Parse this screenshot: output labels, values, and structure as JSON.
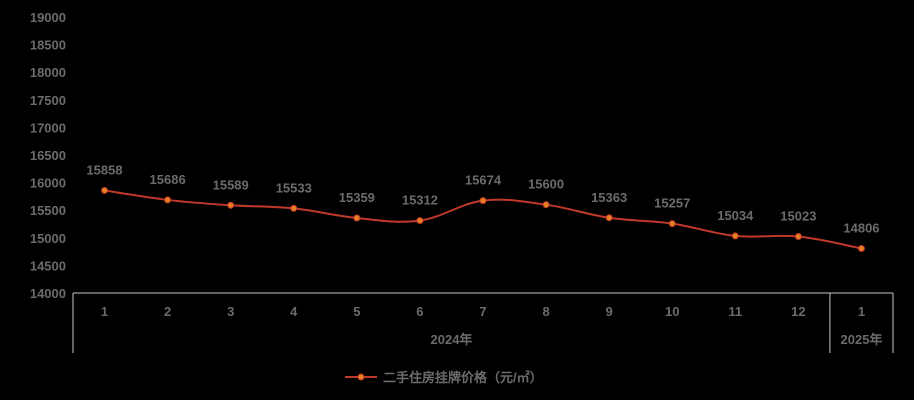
{
  "chart_data": {
    "type": "line",
    "categories": [
      "1",
      "2",
      "3",
      "4",
      "5",
      "6",
      "7",
      "8",
      "9",
      "10",
      "11",
      "12",
      "1"
    ],
    "groups": [
      {
        "label": "2024年",
        "count": 12
      },
      {
        "label": "2025年",
        "count": 1
      }
    ],
    "series": [
      {
        "name": "二手住房挂牌价格（元/㎡）",
        "values": [
          15858,
          15686,
          15589,
          15533,
          15359,
          15312,
          15674,
          15600,
          15363,
          15257,
          15034,
          15023,
          14806
        ],
        "labels": [
          "15858",
          "15686",
          "15589",
          "15533",
          "15359",
          "15312",
          "15674",
          "15600",
          "15363",
          "15257",
          "15034",
          "15023",
          "14806"
        ]
      }
    ],
    "yticks": [
      "19000",
      "18500",
      "18000",
      "17500",
      "17000",
      "16500",
      "16000",
      "15500",
      "15000",
      "14500",
      "14000"
    ],
    "ylim": [
      14000,
      19000
    ],
    "grid": false,
    "legend": "bottom-center",
    "line_color": "#c0392b",
    "marker_color": "#e67e22",
    "axis_color": "#c8c8c8"
  }
}
